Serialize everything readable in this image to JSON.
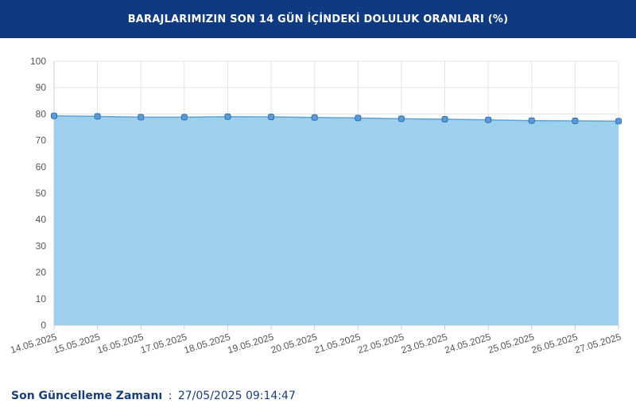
{
  "header": {
    "title": "BARAJLARIMIZIN SON 14 GÜN İÇİNDEKİ DOLULUK ORANLARI (%)"
  },
  "chart_data": {
    "type": "area",
    "title": "",
    "xlabel": "",
    "ylabel": "",
    "ylim": [
      0,
      100
    ],
    "yticks": [
      0,
      10,
      20,
      30,
      40,
      50,
      60,
      70,
      80,
      90,
      100
    ],
    "grid": true,
    "categories": [
      "14.05.2025",
      "15.05.2025",
      "16.05.2025",
      "17.05.2025",
      "18.05.2025",
      "19.05.2025",
      "20.05.2025",
      "21.05.2025",
      "22.05.2025",
      "23.05.2025",
      "24.05.2025",
      "25.05.2025",
      "26.05.2025",
      "27.05.2025"
    ],
    "series": [
      {
        "values": [
          79.3,
          79.1,
          78.8,
          78.8,
          79.0,
          78.9,
          78.7,
          78.5,
          78.2,
          78.0,
          77.8,
          77.5,
          77.4,
          77.3
        ],
        "fill_color": "#9dd0ec",
        "line_color": "#5fa3d6",
        "marker_color": "#5b9bd5"
      }
    ],
    "grid_color": "#e4e4e4",
    "axis_text_color": "#555555"
  },
  "footer": {
    "label": "Son Güncelleme Zamanı",
    "separator": ":",
    "timestamp": "27/05/2025 09:14:47"
  }
}
